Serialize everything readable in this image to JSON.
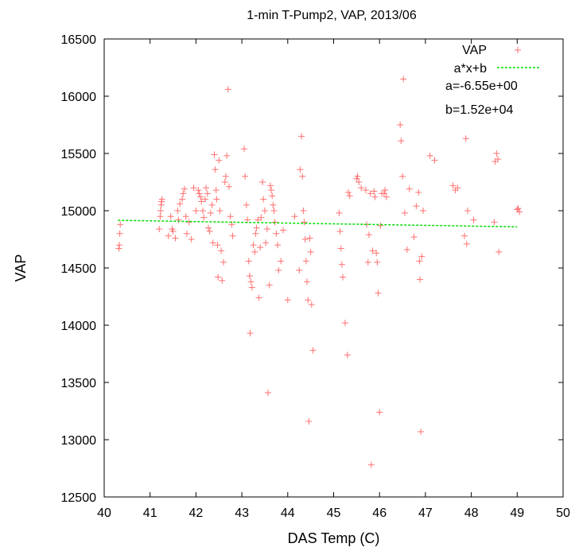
{
  "chart_data": {
    "type": "scatter",
    "title": "1-min T-Pump2, VAP, 2013/06",
    "xlabel": "DAS Temp (C)",
    "ylabel": "VAP",
    "xlim": [
      40,
      50
    ],
    "ylim": [
      12500,
      16500
    ],
    "x_ticks": [
      "40",
      "41",
      "42",
      "43",
      "44",
      "45",
      "46",
      "47",
      "48",
      "49",
      "50"
    ],
    "y_ticks": [
      "12500",
      "13000",
      "13500",
      "14000",
      "14500",
      "15000",
      "15500",
      "16000",
      "16500"
    ],
    "grid": false,
    "legend_position": "top-right",
    "colors": {
      "points": "#ff7070",
      "fit": "#00dd00"
    },
    "series": [
      {
        "name": "VAP",
        "marker": "plus",
        "points": [
          [
            40.32,
            14670
          ],
          [
            40.33,
            14700
          ],
          [
            40.34,
            14800
          ],
          [
            40.35,
            14880
          ],
          [
            41.2,
            14840
          ],
          [
            41.22,
            14950
          ],
          [
            41.23,
            15000
          ],
          [
            41.24,
            15050
          ],
          [
            41.25,
            15080
          ],
          [
            41.26,
            15100
          ],
          [
            41.4,
            14780
          ],
          [
            41.45,
            14950
          ],
          [
            41.48,
            14840
          ],
          [
            41.5,
            14820
          ],
          [
            41.55,
            14760
          ],
          [
            41.6,
            15000
          ],
          [
            41.62,
            14920
          ],
          [
            41.65,
            15060
          ],
          [
            41.7,
            15100
          ],
          [
            41.72,
            15150
          ],
          [
            41.75,
            15190
          ],
          [
            41.78,
            14950
          ],
          [
            41.8,
            14800
          ],
          [
            41.85,
            14900
          ],
          [
            41.9,
            14750
          ],
          [
            41.95,
            15200
          ],
          [
            42.0,
            15000
          ],
          [
            42.05,
            15180
          ],
          [
            42.07,
            15150
          ],
          [
            42.1,
            15120
          ],
          [
            42.12,
            15080
          ],
          [
            42.15,
            15000
          ],
          [
            42.17,
            14940
          ],
          [
            42.2,
            15100
          ],
          [
            42.22,
            15200
          ],
          [
            42.25,
            15150
          ],
          [
            42.27,
            14850
          ],
          [
            42.3,
            14820
          ],
          [
            42.32,
            14980
          ],
          [
            42.35,
            15050
          ],
          [
            42.37,
            14720
          ],
          [
            42.4,
            15490
          ],
          [
            42.42,
            15360
          ],
          [
            42.44,
            15180
          ],
          [
            42.45,
            15100
          ],
          [
            42.47,
            14700
          ],
          [
            42.48,
            14420
          ],
          [
            42.5,
            15440
          ],
          [
            42.52,
            15000
          ],
          [
            42.55,
            14650
          ],
          [
            42.57,
            14390
          ],
          [
            42.6,
            14550
          ],
          [
            42.63,
            15250
          ],
          [
            42.65,
            15300
          ],
          [
            42.67,
            15480
          ],
          [
            42.7,
            16060
          ],
          [
            42.72,
            15210
          ],
          [
            42.75,
            14950
          ],
          [
            42.78,
            14880
          ],
          [
            42.8,
            14780
          ],
          [
            43.05,
            15540
          ],
          [
            43.07,
            15300
          ],
          [
            43.1,
            15050
          ],
          [
            43.12,
            14920
          ],
          [
            43.15,
            14560
          ],
          [
            43.17,
            14430
          ],
          [
            43.18,
            13930
          ],
          [
            43.2,
            14380
          ],
          [
            43.22,
            14330
          ],
          [
            43.25,
            14700
          ],
          [
            43.28,
            14640
          ],
          [
            43.3,
            14800
          ],
          [
            43.32,
            14850
          ],
          [
            43.35,
            14920
          ],
          [
            43.37,
            14240
          ],
          [
            43.4,
            14680
          ],
          [
            43.42,
            14940
          ],
          [
            43.45,
            15250
          ],
          [
            43.47,
            15100
          ],
          [
            43.5,
            15000
          ],
          [
            43.52,
            14720
          ],
          [
            43.55,
            14840
          ],
          [
            43.57,
            13410
          ],
          [
            43.6,
            14350
          ],
          [
            43.62,
            15220
          ],
          [
            43.64,
            15180
          ],
          [
            43.66,
            15130
          ],
          [
            43.68,
            15050
          ],
          [
            43.7,
            15000
          ],
          [
            43.72,
            14900
          ],
          [
            43.75,
            14800
          ],
          [
            43.78,
            14700
          ],
          [
            43.8,
            14480
          ],
          [
            43.85,
            14560
          ],
          [
            43.9,
            14830
          ],
          [
            44.0,
            14220
          ],
          [
            44.15,
            14950
          ],
          [
            44.25,
            14480
          ],
          [
            44.27,
            15360
          ],
          [
            44.3,
            15650
          ],
          [
            44.32,
            15300
          ],
          [
            44.34,
            15000
          ],
          [
            44.36,
            14900
          ],
          [
            44.38,
            14750
          ],
          [
            44.4,
            14560
          ],
          [
            44.42,
            14380
          ],
          [
            44.44,
            14220
          ],
          [
            44.46,
            13160
          ],
          [
            44.48,
            14760
          ],
          [
            44.5,
            14640
          ],
          [
            44.52,
            14180
          ],
          [
            44.55,
            13780
          ],
          [
            45.12,
            14980
          ],
          [
            45.14,
            14820
          ],
          [
            45.16,
            14670
          ],
          [
            45.18,
            14530
          ],
          [
            45.2,
            14420
          ],
          [
            45.25,
            14020
          ],
          [
            45.3,
            13740
          ],
          [
            45.32,
            15160
          ],
          [
            45.35,
            15130
          ],
          [
            45.5,
            15280
          ],
          [
            45.52,
            15300
          ],
          [
            45.55,
            15250
          ],
          [
            45.6,
            15200
          ],
          [
            45.7,
            15180
          ],
          [
            45.72,
            14880
          ],
          [
            45.75,
            14550
          ],
          [
            45.77,
            14790
          ],
          [
            45.8,
            15150
          ],
          [
            45.82,
            12780
          ],
          [
            45.85,
            14650
          ],
          [
            45.88,
            15170
          ],
          [
            45.9,
            15120
          ],
          [
            45.93,
            14630
          ],
          [
            45.95,
            14550
          ],
          [
            45.97,
            14280
          ],
          [
            46.0,
            13240
          ],
          [
            46.02,
            14870
          ],
          [
            46.05,
            15150
          ],
          [
            46.1,
            15150
          ],
          [
            46.12,
            15180
          ],
          [
            46.15,
            15120
          ],
          [
            46.45,
            15750
          ],
          [
            46.47,
            15610
          ],
          [
            46.5,
            15300
          ],
          [
            46.52,
            16150
          ],
          [
            46.55,
            14980
          ],
          [
            46.6,
            14660
          ],
          [
            46.65,
            15190
          ],
          [
            46.75,
            14770
          ],
          [
            46.8,
            15040
          ],
          [
            46.85,
            15160
          ],
          [
            46.87,
            14560
          ],
          [
            46.88,
            14400
          ],
          [
            46.9,
            13070
          ],
          [
            46.92,
            14600
          ],
          [
            46.95,
            15000
          ],
          [
            47.1,
            15480
          ],
          [
            47.2,
            15440
          ],
          [
            47.6,
            15220
          ],
          [
            47.65,
            15180
          ],
          [
            47.7,
            15200
          ],
          [
            47.85,
            14780
          ],
          [
            47.88,
            15630
          ],
          [
            47.9,
            14710
          ],
          [
            47.92,
            15000
          ],
          [
            48.05,
            14920
          ],
          [
            48.5,
            14900
          ],
          [
            48.52,
            15430
          ],
          [
            48.55,
            15500
          ],
          [
            48.58,
            15450
          ],
          [
            48.6,
            14640
          ],
          [
            49.0,
            15010
          ],
          [
            49.02,
            15020
          ],
          [
            49.05,
            14990
          ]
        ]
      },
      {
        "name": "a*x+b",
        "type": "line",
        "x": [
          40.3,
          49.0
        ],
        "y": [
          14916,
          14859
        ]
      }
    ],
    "annotations": [
      "a=-6.55e+00",
      "b=1.52e+04"
    ]
  }
}
